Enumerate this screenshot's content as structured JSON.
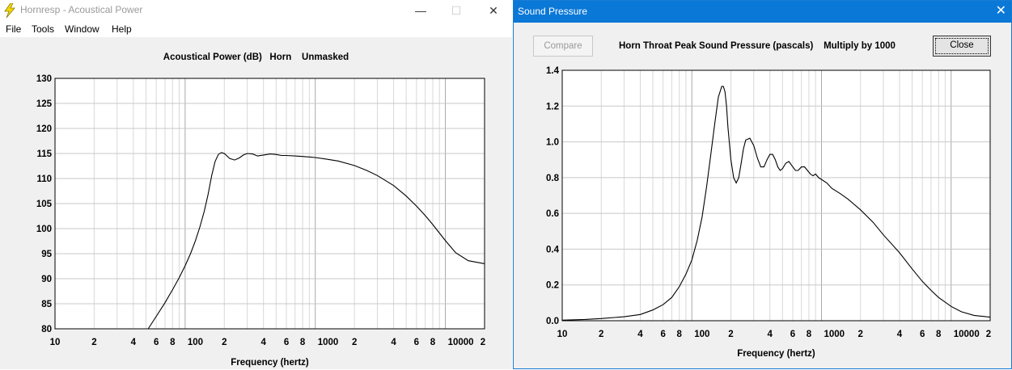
{
  "window1": {
    "title": "Hornresp - Acoustical Power",
    "menu": [
      "File",
      "Tools",
      "Window",
      "Help"
    ],
    "controls": {
      "minimize": "—",
      "maximize": "☐",
      "close": "✕"
    }
  },
  "window2": {
    "title": "Sound Pressure",
    "compare_label": "Compare",
    "close_label": "Close",
    "close_glyph": "✕"
  },
  "x_tick_labels": [
    "10",
    "2",
    "4",
    "6",
    "8",
    "100",
    "2",
    "4",
    "6",
    "8",
    "1000",
    "2",
    "4",
    "6",
    "8",
    "10000",
    "2"
  ],
  "chart_data": [
    {
      "type": "line",
      "title": "Acoustical Power (dB)   Horn    Unmasked",
      "xlabel": "Frequency (hertz)",
      "ylabel": "",
      "xscale": "log",
      "xlim": [
        10,
        20000
      ],
      "ylim": [
        80,
        130
      ],
      "yticks": [
        "130",
        "125",
        "120",
        "115",
        "110",
        "105",
        "100",
        "95",
        "90",
        "85",
        "80"
      ],
      "grid": true,
      "series": [
        {
          "x": [
            52,
            60,
            70,
            80,
            90,
            100,
            110,
            120,
            130,
            140,
            150,
            160,
            170,
            180,
            190,
            200,
            210,
            220,
            240,
            260,
            280,
            300,
            330,
            360,
            400,
            450,
            500,
            550,
            600,
            700,
            800,
            900,
            1000,
            1200,
            1500,
            2000,
            2500,
            3000,
            4000,
            5000,
            6000,
            7000,
            8000,
            10000,
            12000,
            15000,
            20000
          ],
          "y": [
            80,
            82.5,
            85.2,
            87.8,
            90.2,
            92.6,
            95,
            97.6,
            100.4,
            103.4,
            106.8,
            110.6,
            113.4,
            114.8,
            115.2,
            115,
            114.5,
            114.0,
            113.7,
            114.1,
            114.7,
            115.0,
            114.9,
            114.5,
            114.7,
            114.9,
            114.8,
            114.6,
            114.6,
            114.5,
            114.4,
            114.3,
            114.2,
            113.9,
            113.5,
            112.6,
            111.6,
            110.6,
            108.6,
            106.5,
            104.5,
            102.6,
            100.8,
            97.6,
            95.2,
            93.6,
            93.0
          ]
        }
      ]
    },
    {
      "type": "line",
      "title": "Horn Throat Peak Sound Pressure (pascals)    Multiply by 1000",
      "xlabel": "Frequency (hertz)",
      "ylabel": "",
      "xscale": "log",
      "xlim": [
        10,
        20000
      ],
      "ylim": [
        0,
        1.4
      ],
      "yticks": [
        "1.4",
        "1.2",
        "1.0",
        "0.8",
        "0.6",
        "0.4",
        "0.2",
        "0.0"
      ],
      "grid": true,
      "series": [
        {
          "x": [
            10,
            15,
            20,
            30,
            40,
            50,
            60,
            70,
            80,
            90,
            100,
            110,
            120,
            130,
            140,
            150,
            160,
            170,
            175,
            180,
            185,
            190,
            200,
            210,
            220,
            230,
            240,
            250,
            260,
            280,
            300,
            320,
            340,
            360,
            380,
            400,
            420,
            440,
            460,
            480,
            500,
            530,
            560,
            600,
            630,
            660,
            700,
            740,
            780,
            820,
            860,
            900,
            950,
            1000,
            1100,
            1200,
            1400,
            1600,
            2000,
            2500,
            3000,
            4000,
            5000,
            6000,
            7000,
            8000,
            10000,
            12000,
            15000,
            20000
          ],
          "y": [
            0.003,
            0.007,
            0.012,
            0.022,
            0.035,
            0.06,
            0.09,
            0.13,
            0.19,
            0.26,
            0.34,
            0.45,
            0.58,
            0.75,
            0.93,
            1.1,
            1.25,
            1.31,
            1.31,
            1.28,
            1.2,
            1.08,
            0.9,
            0.8,
            0.77,
            0.8,
            0.88,
            0.96,
            1.01,
            1.02,
            0.98,
            0.91,
            0.86,
            0.86,
            0.9,
            0.93,
            0.93,
            0.9,
            0.86,
            0.84,
            0.85,
            0.88,
            0.89,
            0.86,
            0.84,
            0.84,
            0.86,
            0.86,
            0.84,
            0.82,
            0.81,
            0.82,
            0.8,
            0.79,
            0.77,
            0.74,
            0.71,
            0.68,
            0.62,
            0.55,
            0.48,
            0.38,
            0.29,
            0.22,
            0.17,
            0.13,
            0.08,
            0.05,
            0.03,
            0.02
          ]
        }
      ]
    }
  ]
}
